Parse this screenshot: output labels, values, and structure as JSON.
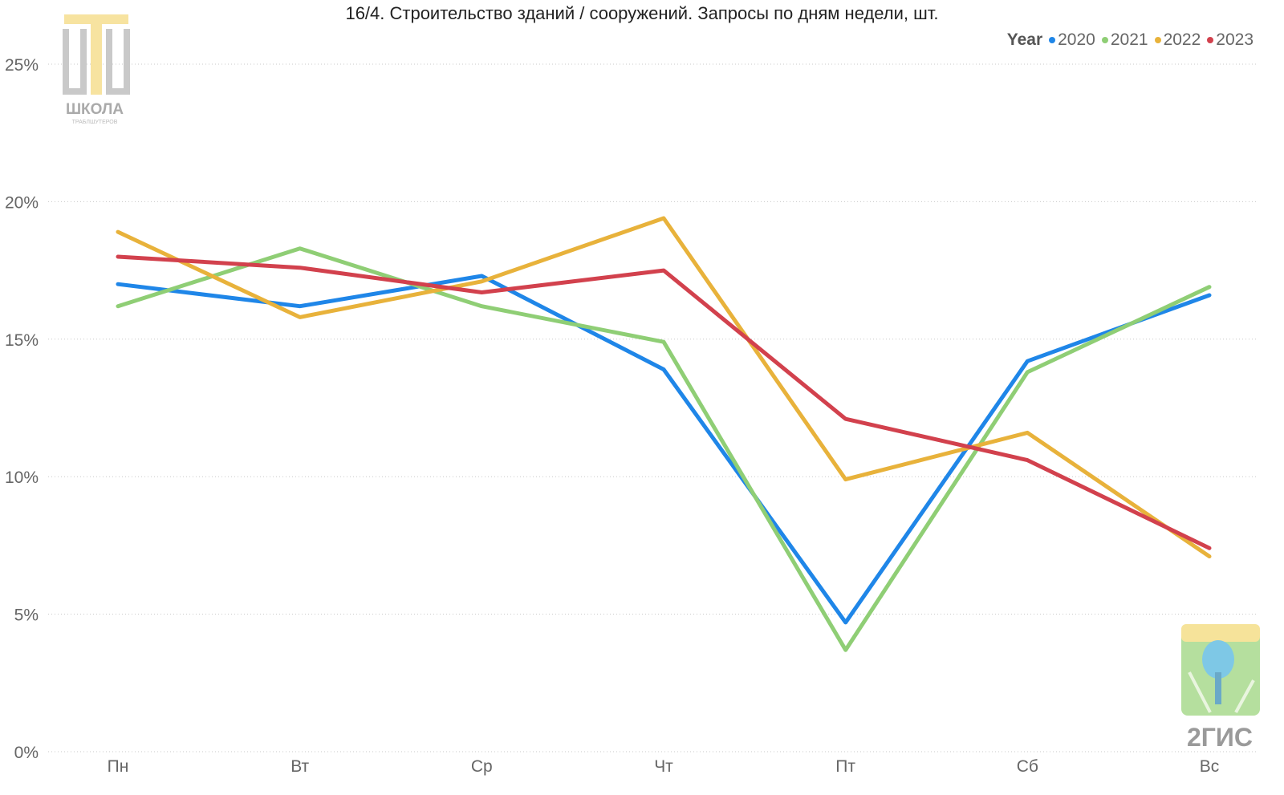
{
  "title": "16/4. Строительство зданий / сооружений. Запросы по дням недели, шт.",
  "legend": {
    "title": "Year",
    "position": "top-right"
  },
  "logos": {
    "school": {
      "text": "ШКОЛА",
      "subtext": "ТРАБЛШУТЕРОВ"
    },
    "gis": {
      "text": "2ГИС"
    }
  },
  "chart_data": {
    "type": "line",
    "title": "16/4. Строительство зданий / сооружений. Запросы по дням недели, шт.",
    "categories": [
      "Пн",
      "Вт",
      "Ср",
      "Чт",
      "Пт",
      "Сб",
      "Вс"
    ],
    "ylim": [
      0,
      25
    ],
    "yticks": [
      0,
      5,
      10,
      15,
      20,
      25
    ],
    "ytick_labels": [
      "0%",
      "5%",
      "10%",
      "15%",
      "20%",
      "25%"
    ],
    "grid": "horizontal-dotted",
    "series": [
      {
        "name": "2020",
        "color": "#1f86e8",
        "values": [
          17.0,
          16.2,
          17.3,
          13.9,
          4.7,
          14.2,
          16.6
        ]
      },
      {
        "name": "2021",
        "color": "#8fce75",
        "values": [
          16.2,
          18.3,
          16.2,
          14.9,
          3.7,
          13.8,
          16.9
        ]
      },
      {
        "name": "2022",
        "color": "#e8b23b",
        "values": [
          18.9,
          15.8,
          17.1,
          19.4,
          9.9,
          11.6,
          7.1
        ]
      },
      {
        "name": "2023",
        "color": "#d2414d",
        "values": [
          18.0,
          17.6,
          16.7,
          17.5,
          12.1,
          10.6,
          7.4
        ]
      }
    ]
  }
}
